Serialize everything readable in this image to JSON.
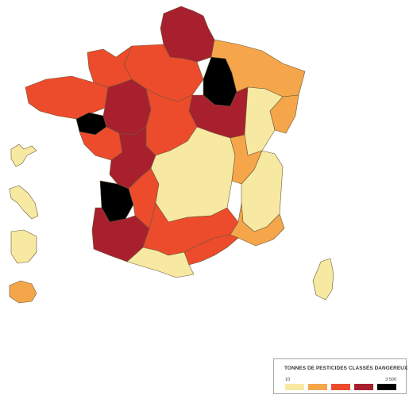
{
  "legend": {
    "title": "TONNES DE PESTICIDES CLASSÉS DANGEREUX",
    "min_label": "10",
    "max_label": "3 500",
    "classes": [
      {
        "color": "#f7e9a1"
      },
      {
        "color": "#f5a54a"
      },
      {
        "color": "#ec4b2c"
      },
      {
        "color": "#a8202e"
      },
      {
        "color": "#000000"
      }
    ]
  },
  "map": {
    "border_color": "#6b5a3a",
    "regions": [
      {
        "name": "nord",
        "class": 3
      },
      {
        "name": "champagne",
        "class": 4
      },
      {
        "name": "paris-basin",
        "class": 2
      },
      {
        "name": "lorraine",
        "class": 1
      },
      {
        "name": "alsace",
        "class": 1
      },
      {
        "name": "bourgogne",
        "class": 3
      },
      {
        "name": "franche-comte",
        "class": 0
      },
      {
        "name": "bretagne",
        "class": 2
      },
      {
        "name": "loire-atlantique",
        "class": 4
      },
      {
        "name": "vendee",
        "class": 2
      },
      {
        "name": "pays-de-loire",
        "class": 3
      },
      {
        "name": "centre",
        "class": 2
      },
      {
        "name": "poitou",
        "class": 3
      },
      {
        "name": "gironde",
        "class": 4
      },
      {
        "name": "landes",
        "class": 3
      },
      {
        "name": "massif-central",
        "class": 0
      },
      {
        "name": "rhone-alpes",
        "class": 1
      },
      {
        "name": "alpes",
        "class": 0
      },
      {
        "name": "midi-pyrenees",
        "class": 2
      },
      {
        "name": "languedoc",
        "class": 2
      },
      {
        "name": "provence",
        "class": 1
      },
      {
        "name": "pyrenees",
        "class": 0
      },
      {
        "name": "corse",
        "class": 0
      },
      {
        "name": "guadeloupe",
        "class": 0
      },
      {
        "name": "martinique",
        "class": 0
      },
      {
        "name": "guyane",
        "class": 0
      },
      {
        "name": "reunion",
        "class": 1
      }
    ]
  }
}
